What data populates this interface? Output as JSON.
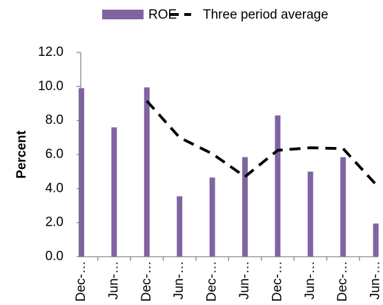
{
  "chart_data": {
    "type": "bar-line",
    "categories": [
      "Dec-…",
      "Jun-…",
      "Dec-…",
      "Jun-…",
      "Dec-…",
      "Jun-…",
      "Dec-…",
      "Jun-…",
      "Dec-…",
      "Jun-…"
    ],
    "series": [
      {
        "name": "ROE",
        "type": "bar",
        "color": "#8064a2",
        "values": [
          9.9,
          7.6,
          9.95,
          3.55,
          4.65,
          5.85,
          8.3,
          5.0,
          5.85,
          1.95
        ]
      },
      {
        "name": "Three period average",
        "type": "line",
        "color": "#000000",
        "dashed": true,
        "values": [
          null,
          null,
          9.15,
          7.0,
          6.05,
          4.7,
          6.25,
          6.4,
          6.35,
          4.25
        ]
      }
    ],
    "y_label": "Percent",
    "ylim": [
      0,
      12
    ],
    "yticks": [
      {
        "value": 0,
        "label": "0.0"
      },
      {
        "value": 2,
        "label": "2.0"
      },
      {
        "value": 4,
        "label": "4.0"
      },
      {
        "value": 6,
        "label": "6.0"
      },
      {
        "value": 8,
        "label": "8.0"
      },
      {
        "value": 10,
        "label": "10.0"
      },
      {
        "value": 12,
        "label": "12.0"
      }
    ],
    "grid": false,
    "legend": "top"
  }
}
